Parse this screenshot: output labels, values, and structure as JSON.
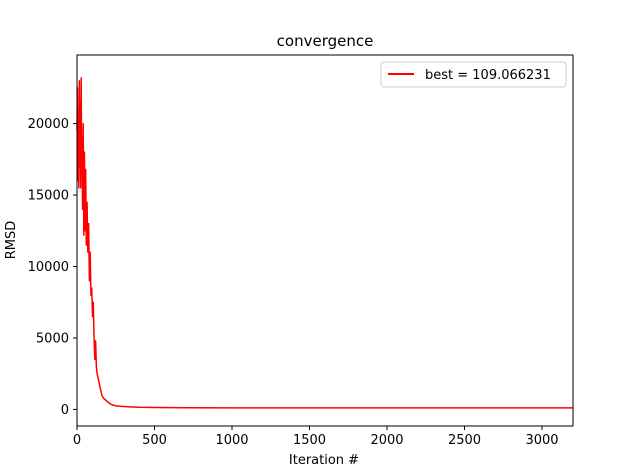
{
  "chart_data": {
    "type": "line",
    "title": "convergence",
    "xlabel": "Iteration #",
    "ylabel": "RMSD",
    "xlim": [
      0,
      3200
    ],
    "ylim": [
      -1160,
      24800
    ],
    "xticks": [
      0,
      500,
      1000,
      1500,
      2000,
      2500,
      3000
    ],
    "yticks": [
      0,
      5000,
      10000,
      15000,
      20000
    ],
    "grid": false,
    "legend_position": "top-right",
    "series": [
      {
        "name": "best = 109.066231",
        "color": "#ff0000",
        "x": [
          0,
          3,
          6,
          9,
          12,
          15,
          18,
          21,
          24,
          27,
          30,
          33,
          36,
          40,
          44,
          48,
          52,
          56,
          60,
          65,
          70,
          75,
          80,
          85,
          90,
          95,
          100,
          105,
          110,
          115,
          120,
          125,
          130,
          140,
          150,
          160,
          170,
          180,
          200,
          220,
          250,
          300,
          400,
          500,
          700,
          1000,
          1500,
          2000,
          2500,
          3000,
          3200
        ],
        "y": [
          19500,
          22500,
          16000,
          21000,
          15500,
          23000,
          17000,
          21500,
          15500,
          23200,
          16500,
          19000,
          14000,
          20000,
          12200,
          18000,
          12500,
          16800,
          11500,
          14500,
          11000,
          13000,
          9000,
          11000,
          8000,
          8500,
          6500,
          7500,
          5000,
          3500,
          4800,
          3000,
          2500,
          2000,
          1500,
          1000,
          800,
          700,
          500,
          350,
          250,
          200,
          150,
          130,
          115,
          110,
          109,
          109,
          109,
          109,
          109
        ]
      }
    ]
  }
}
